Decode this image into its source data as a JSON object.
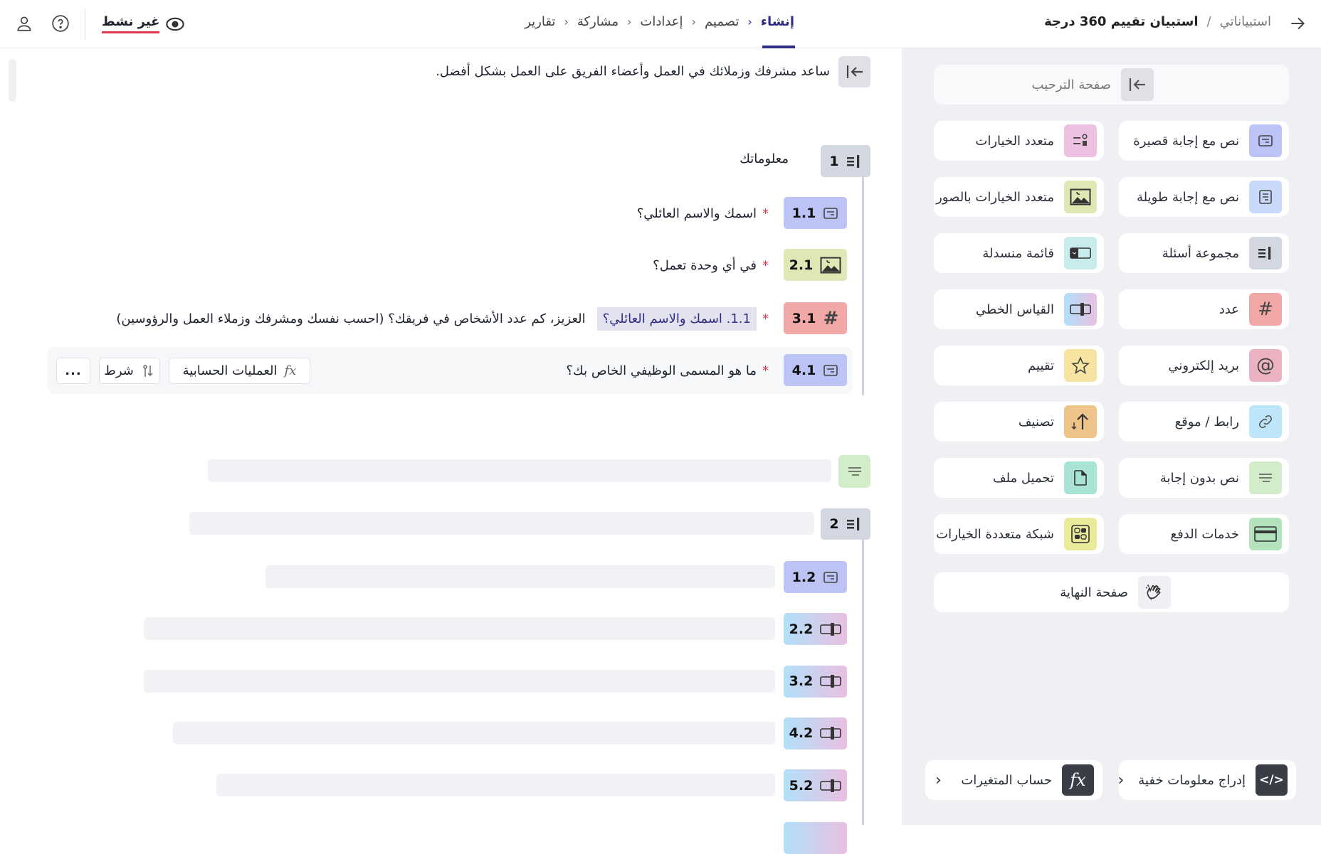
{
  "header": {
    "breadcrumb_root": "استبياناتي",
    "breadcrumb_sep": "/",
    "survey_title": "استبيان تقييم 360 درجة",
    "tabs": [
      {
        "label": "إنشاء",
        "active": true
      },
      {
        "label": "تصميم",
        "active": false
      },
      {
        "label": "إعدادات",
        "active": false
      },
      {
        "label": "مشاركة",
        "active": false
      },
      {
        "label": "تقارير",
        "active": false
      }
    ],
    "status_label": "غير نشط",
    "status_color": "#e0364f",
    "accent_color": "#2f2e86"
  },
  "main": {
    "description": "ساعد مشرفك وزملائك في العمل وأعضاء الفريق على العمل بشكل أفضل.",
    "section1": {
      "number": "1",
      "title": "معلوماتك",
      "questions": [
        {
          "number": "1.1",
          "text": "اسمك والاسم العائلي؟",
          "icon": "text-short-icon",
          "color": "#bcc4f5",
          "required": "*"
        },
        {
          "number": "2.1",
          "text": "في أي وحدة تعمل؟",
          "icon": "image-icon",
          "color": "#dde8b4",
          "required": "*"
        },
        {
          "number": "3.1",
          "chip": "1.1. اسمك والاسم العائلي؟",
          "text": "العزيز، كم عدد الأشخاص في فريقك؟ (احسب نفسك ومشرفك وزملاء العمل والرؤوسين)",
          "icon": "number-icon",
          "color": "#f2a8a6",
          "required": "*"
        },
        {
          "number": "4.1",
          "text": "ما هو المسمى الوظيفي الخاص بك؟",
          "icon": "text-short-icon",
          "color": "#bcc4f5",
          "required": "*"
        }
      ],
      "actions": {
        "calc": "العمليات الحسابية",
        "condition": "شرط",
        "more": "..."
      }
    },
    "section2": {
      "number": "2",
      "questions": [
        {
          "number": "1.2",
          "icon": "text-short-icon"
        },
        {
          "number": "2.2",
          "icon": "linear-scale-icon"
        },
        {
          "number": "3.2",
          "icon": "linear-scale-icon"
        },
        {
          "number": "4.2",
          "icon": "linear-scale-icon"
        },
        {
          "number": "5.2",
          "icon": "linear-scale-icon"
        }
      ]
    }
  },
  "sidebar": {
    "welcome": "صفحة الترحيب",
    "items": [
      {
        "label": "نص مع إجابة قصيرة",
        "icon": "text-short",
        "color": "#bcc4f5"
      },
      {
        "label": "متعدد الخيارات",
        "icon": "multi-choice",
        "color": "#ebc0e0"
      },
      {
        "label": "نص مع إجابة طويلة",
        "icon": "text-long",
        "color": "#c9d9fb"
      },
      {
        "label": "متعدد الخيارات بالصور",
        "icon": "image",
        "color": "#dde8b4"
      },
      {
        "label": "مجموعة أسئلة",
        "icon": "group",
        "color": "#d3d7e2"
      },
      {
        "label": "قائمة منسدلة",
        "icon": "dropdown",
        "color": "#c8ecec"
      },
      {
        "label": "عدد",
        "icon": "number",
        "color": "#f2a8a6"
      },
      {
        "label": "القياس الخطي",
        "icon": "scale",
        "color": "gradient"
      },
      {
        "label": "بريد إلكتروني",
        "icon": "email",
        "color": "#ebb2c2"
      },
      {
        "label": "تقييم",
        "icon": "star",
        "color": "#f6e4a0"
      },
      {
        "label": "رابط / موقع",
        "icon": "link",
        "color": "#bde6fb"
      },
      {
        "label": "تصنيف",
        "icon": "ranking",
        "color": "#efc48a"
      },
      {
        "label": "نص بدون إجابة",
        "icon": "lines",
        "color": "#d3edcb"
      },
      {
        "label": "تحميل ملف",
        "icon": "file",
        "color": "#a8e3d5"
      },
      {
        "label": "خدمات الدفع",
        "icon": "card",
        "color": "#b2e3bc"
      },
      {
        "label": "شبكة متعددة الخيارات",
        "icon": "grid",
        "color": "#ebe99a"
      }
    ],
    "end_page": "صفحة النهاية",
    "hidden_fields": "إدراج معلومات خفية",
    "variables": "حساب المتغيرات"
  }
}
